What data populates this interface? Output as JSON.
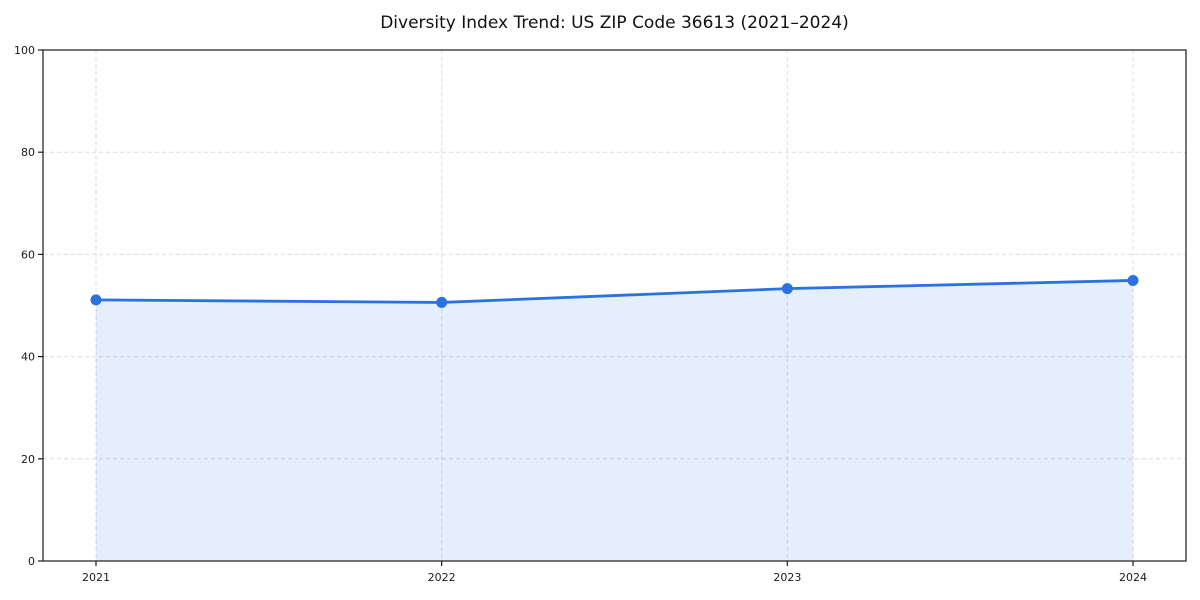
{
  "chart_data": {
    "type": "area",
    "title": "Diversity Index Trend: US ZIP Code 36613 (2021–2024)",
    "categories": [
      "2021",
      "2022",
      "2023",
      "2024"
    ],
    "series": [
      {
        "name": "Diversity Index",
        "values": [
          51.1,
          50.6,
          53.3,
          54.9
        ]
      }
    ],
    "xlabel": "",
    "ylabel": "",
    "ylim": [
      0,
      100
    ],
    "yticks": [
      0,
      20,
      40,
      60,
      80,
      100
    ],
    "grid": true,
    "grid_style": "dashed",
    "legend_position": "none",
    "line_color": "#2b72e0",
    "fill_color": "#2b72e0",
    "fill_opacity": 0.12,
    "grid_color": "#dcdcdc",
    "axis_color": "#1a1a1a",
    "text_color": "#1a1a1a",
    "background_color": "#ffffff",
    "marker": "circle"
  }
}
